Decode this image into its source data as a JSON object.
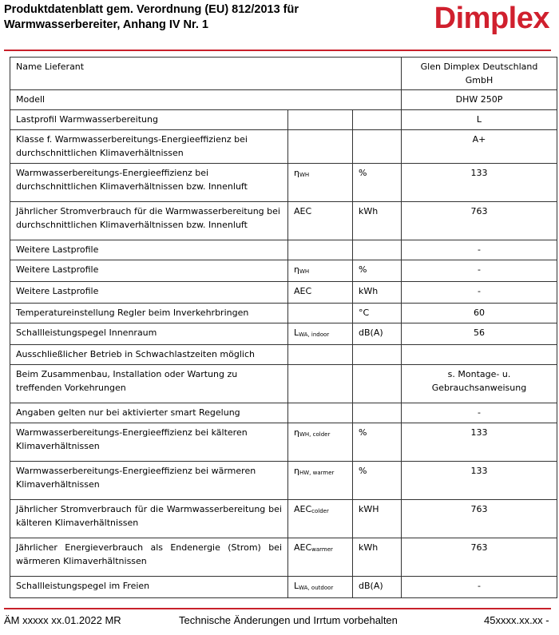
{
  "header": {
    "title_line1": "Produktdatenblatt gem. Verordnung (EU) 812/2013 für",
    "title_line2": "Warmwasserbereiter, Anhang IV Nr. 1",
    "logo": "Dimplex",
    "brand_color": "#d0202e"
  },
  "table": {
    "rows": [
      {
        "label": "Name Lieferant",
        "value": "Glen Dimplex Deutschland GmbH"
      },
      {
        "label": "Modell",
        "value": "DHW 250P"
      },
      {
        "label": "Lastprofil Warmwasserbereitung",
        "sym": "",
        "sub": "",
        "unit": "",
        "value": "L"
      },
      {
        "label": "Klasse f. Warmwasserbereitungs-Energieeffizienz bei durchschnittlichen Klimaverhältnissen",
        "sym": "",
        "sub": "",
        "unit": "",
        "value": "A+"
      },
      {
        "label": "Warmwasserbereitungs-Energieeffizienz bei durchschnittlichen Klimaverhältnissen bzw. Innenluft",
        "sym": "η",
        "sub": "WH",
        "unit": "%",
        "value": "133"
      },
      {
        "label": "Jährlicher Stromverbrauch für die Warmwasserbereitung bei durchschnittlichen Klimaverhältnissen bzw. Innenluft",
        "sym": "AEC",
        "sub": "",
        "unit": "kWh",
        "value": "763"
      },
      {
        "label": "Weitere Lastprofile",
        "sym": "",
        "sub": "",
        "unit": "",
        "value": "-"
      },
      {
        "label": "Weitere Lastprofile",
        "sym": "η",
        "sub": "WH",
        "unit": "%",
        "value": "-"
      },
      {
        "label": "Weitere Lastprofile",
        "sym": "AEC",
        "sub": "",
        "unit": "kWh",
        "value": "-"
      },
      {
        "label": "Temperatureinstellung Regler beim Inverkehrbringen",
        "sym": "",
        "sub": "",
        "unit": "°C",
        "value": "60"
      },
      {
        "label": "Schallleistungspegel Innenraum",
        "sym": "L",
        "sub": "WA, indoor",
        "unit": "dB(A)",
        "value": "56"
      },
      {
        "label": "Ausschließlicher Betrieb in Schwachlastzeiten möglich",
        "sym": "",
        "sub": "",
        "unit": "",
        "value": ""
      },
      {
        "label": "Beim Zusammenbau, Installation oder Wartung zu treffenden Vorkehrungen",
        "sym": "",
        "sub": "",
        "unit": "",
        "value": "s. Montage- u. Gebrauchsanweisung"
      },
      {
        "label": "Angaben gelten nur bei aktivierter smart Regelung",
        "sym": "",
        "sub": "",
        "unit": "",
        "value": "-"
      },
      {
        "label": "Warmwasserbereitungs-Energieeffizienz bei kälteren Klimaverhältnissen",
        "sym": "η",
        "sub": "WH, colder",
        "unit": "%",
        "value": "133"
      },
      {
        "label": "Warmwasserbereitungs-Energieeffizienz bei wärmeren Klimaverhältnissen",
        "sym": "η",
        "sub": "HW, warmer",
        "unit": "%",
        "value": "133"
      },
      {
        "label": "Jährlicher Stromverbrauch für die Warmwasserbereitung bei kälteren Klimaverhältnissen",
        "sym": "AEC",
        "sub": "colder",
        "unit": "kWH",
        "value": "763"
      },
      {
        "label": "Jährlicher Energieverbrauch als Endenergie (Strom) bei wärmeren Klimaverhältnissen",
        "sym": "AEC",
        "sub": "warmer",
        "unit": "kWh",
        "value": "763"
      },
      {
        "label": "Schallleistungspegel im Freien",
        "sym": "L",
        "sub": "WA, outdoor",
        "unit": "dB(A)",
        "value": "-"
      }
    ]
  },
  "footer": {
    "left": "ÄM xxxxx  xx.01.2022  MR",
    "center": "Technische Änderungen und Irrtum vorbehalten",
    "right": "45xxxx.xx.xx  -"
  }
}
